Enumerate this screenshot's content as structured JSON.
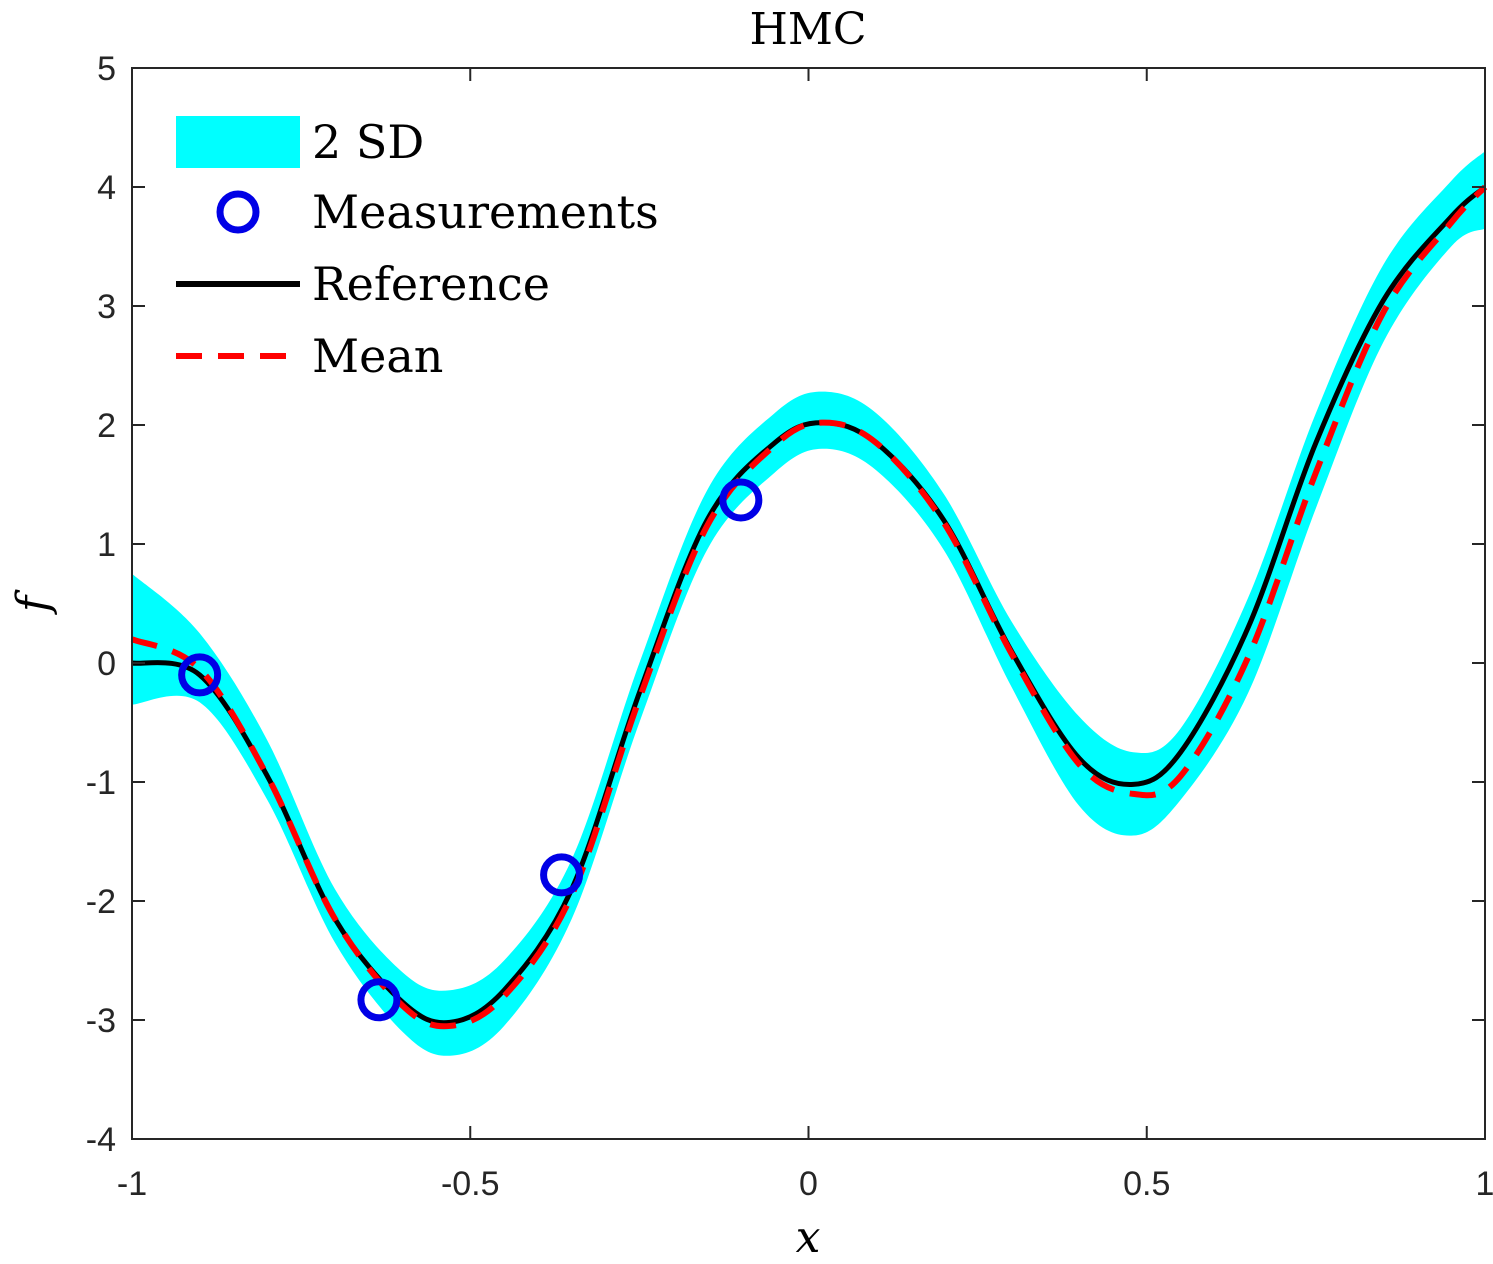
{
  "chart_data": {
    "type": "line",
    "title": "HMC",
    "xlabel": "x",
    "ylabel": "f",
    "xlim": [
      -1,
      1
    ],
    "ylim": [
      -4,
      5
    ],
    "x_ticks": [
      -1,
      -0.5,
      0,
      0.5,
      1
    ],
    "x_tick_labels": [
      "-1",
      "-0.5",
      "0",
      "0.5",
      "1"
    ],
    "y_ticks": [
      -4,
      -3,
      -2,
      -1,
      0,
      1,
      2,
      3,
      4,
      5
    ],
    "y_tick_labels": [
      "-4",
      "-3",
      "-2",
      "-1",
      "0",
      "1",
      "2",
      "3",
      "4",
      "5"
    ],
    "grid": false,
    "legend_position": "top-left",
    "legend": [
      {
        "label": "2 SD",
        "kind": "band",
        "color": "#00FFFF"
      },
      {
        "label": "Measurements",
        "kind": "marker",
        "color": "#0000E6"
      },
      {
        "label": "Reference",
        "kind": "line",
        "color": "#000000"
      },
      {
        "label": "Mean",
        "kind": "dashed-line",
        "color": "#FF0000"
      }
    ],
    "x": [
      -1.0,
      -0.9,
      -0.8,
      -0.7,
      -0.6,
      -0.53,
      -0.45,
      -0.35,
      -0.25,
      -0.15,
      -0.05,
      0.02,
      0.1,
      0.2,
      0.3,
      0.4,
      0.48,
      0.55,
      0.65,
      0.75,
      0.85,
      0.95,
      1.0
    ],
    "series": [
      {
        "name": "Reference",
        "values": [
          0.0,
          -0.1,
          -0.95,
          -2.15,
          -2.85,
          -3.02,
          -2.75,
          -1.9,
          -0.25,
          1.2,
          1.85,
          2.02,
          1.85,
          1.2,
          0.1,
          -0.8,
          -1.02,
          -0.75,
          0.3,
          1.85,
          3.05,
          3.75,
          4.0
        ],
        "color": "#000000"
      },
      {
        "name": "Mean",
        "values": [
          0.2,
          -0.05,
          -0.95,
          -2.15,
          -2.88,
          -3.05,
          -2.8,
          -1.95,
          -0.3,
          1.15,
          1.83,
          2.02,
          1.85,
          1.18,
          0.08,
          -0.85,
          -1.1,
          -0.95,
          0.05,
          1.6,
          2.95,
          3.7,
          4.0
        ],
        "color": "#FF0000"
      }
    ],
    "band": {
      "name": "2 SD",
      "lower": [
        -0.35,
        -0.33,
        -1.15,
        -2.35,
        -3.1,
        -3.3,
        -3.05,
        -2.15,
        -0.5,
        0.95,
        1.6,
        1.8,
        1.62,
        0.95,
        -0.2,
        -1.2,
        -1.45,
        -1.15,
        -0.25,
        1.3,
        2.7,
        3.5,
        3.65
      ],
      "upper": [
        0.75,
        0.25,
        -0.65,
        -1.9,
        -2.6,
        -2.75,
        -2.5,
        -1.65,
        0.0,
        1.45,
        2.1,
        2.28,
        2.1,
        1.42,
        0.35,
        -0.45,
        -0.75,
        -0.55,
        0.55,
        2.1,
        3.35,
        4.05,
        4.3
      ],
      "color": "#00FFFF"
    },
    "measurements": {
      "name": "Measurements",
      "x": [
        -0.9,
        -0.635,
        -0.365,
        -0.1
      ],
      "y": [
        -0.1,
        -2.83,
        -1.78,
        1.37
      ],
      "color": "#0000E6"
    }
  }
}
